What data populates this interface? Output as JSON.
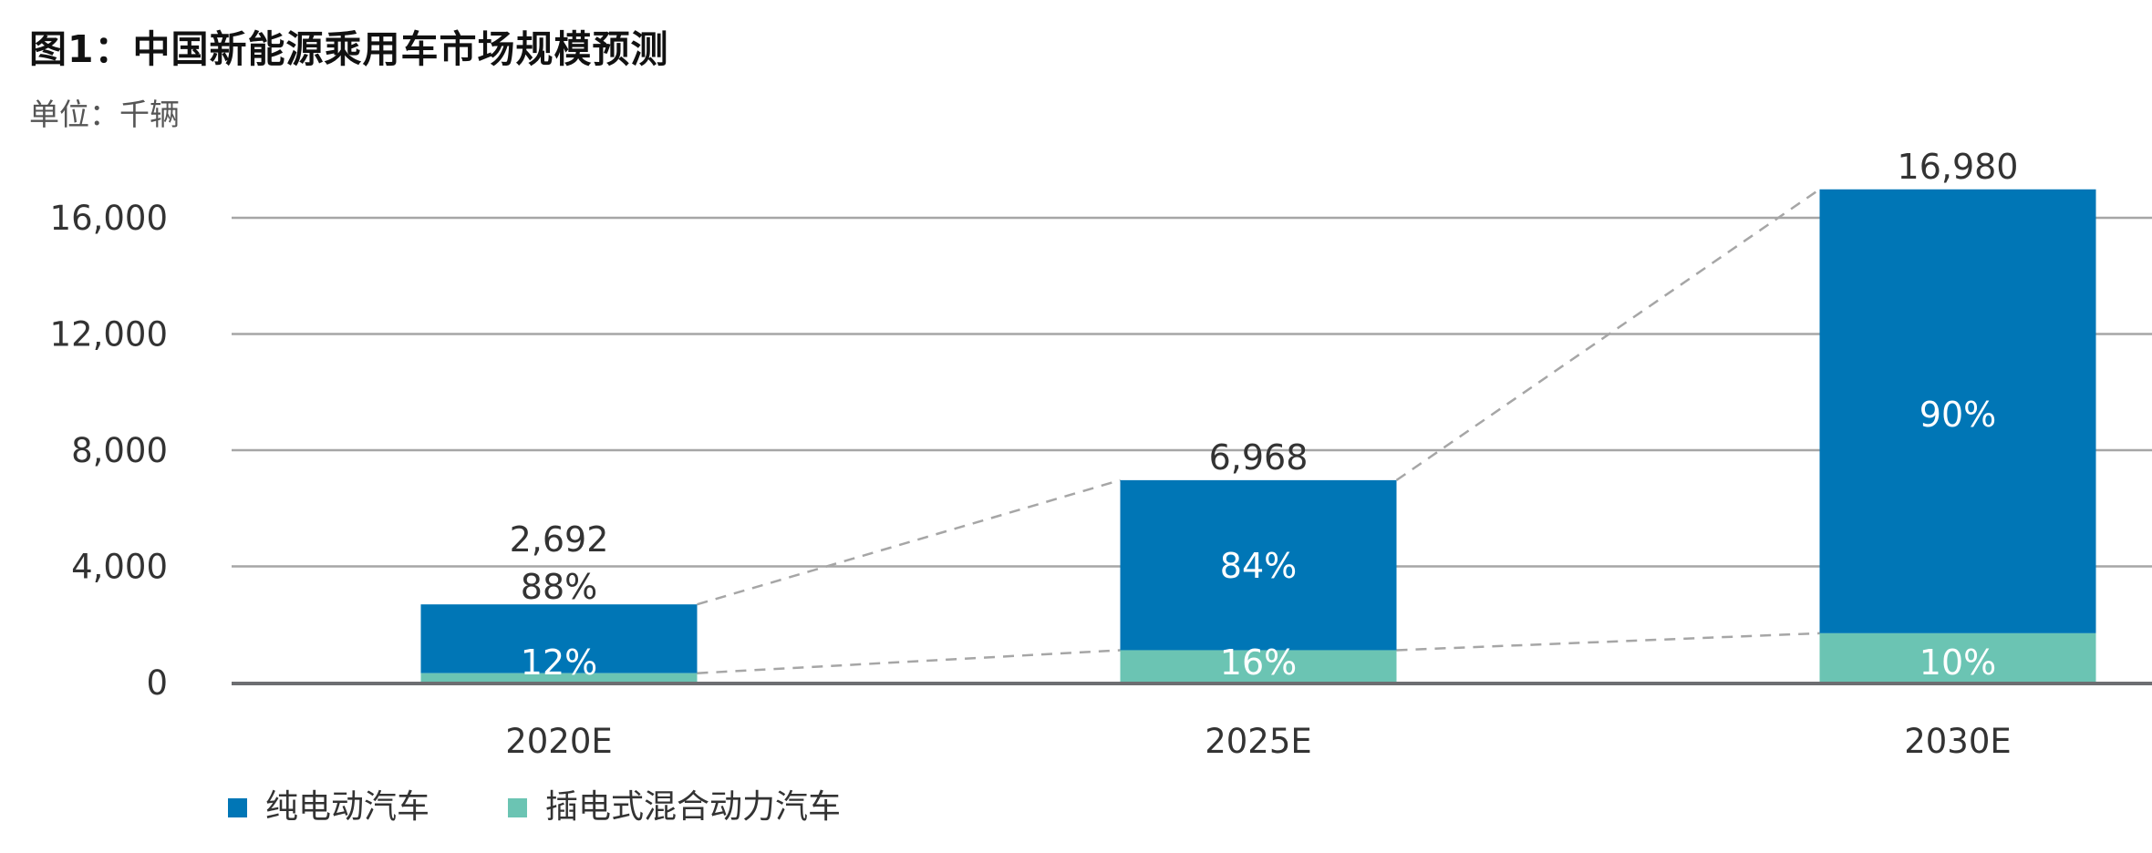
{
  "header": {
    "title": "图1：中国新能源乘用车市场规模预测",
    "unit": "单位：千辆"
  },
  "colors": {
    "bev": "#0076B6",
    "phev": "#6BC4B3",
    "grid": "#A6A6A6",
    "baseline": "#6D6E71",
    "connector": "#A6A6A6",
    "value_text": "#333333",
    "inside_text": "#FFFFFF"
  },
  "legend": [
    {
      "name": "纯电动汽车",
      "color_key": "bev",
      "icon": "square-swatch-icon"
    },
    {
      "name": "插电式混合动力汽车",
      "color_key": "phev",
      "icon": "square-swatch-icon"
    }
  ],
  "chart_data": {
    "type": "bar",
    "stacked": true,
    "title": "图1：中国新能源乘用车市场规模预测",
    "subtitle": "单位：千辆",
    "xlabel": "",
    "ylabel": "",
    "categories": [
      "2020E",
      "2025E",
      "2030E"
    ],
    "totals": [
      2692,
      6968,
      16980
    ],
    "total_labels": [
      "2,692",
      "6,968",
      "16,980"
    ],
    "series": [
      {
        "name": "插电式混合动力汽车",
        "share_pct": [
          12,
          16,
          10
        ],
        "share_labels": [
          "12%",
          "16%",
          "10%"
        ],
        "values": [
          323,
          1115,
          1698
        ]
      },
      {
        "name": "纯电动汽车",
        "share_pct": [
          88,
          84,
          90
        ],
        "share_labels": [
          "88%",
          "84%",
          "90%"
        ],
        "values": [
          2369,
          5853,
          15282
        ]
      }
    ],
    "yticks": [
      0,
      4000,
      8000,
      12000,
      16000
    ],
    "ytick_labels": [
      "0",
      "4,000",
      "8,000",
      "12,000",
      "16,000"
    ],
    "ylim": [
      0,
      16000
    ],
    "grid": true,
    "connector_lines": "dashed lines linking the tops of consecutive bars and the tops of consecutive PHEV segments",
    "legend_position": "bottom-left"
  }
}
